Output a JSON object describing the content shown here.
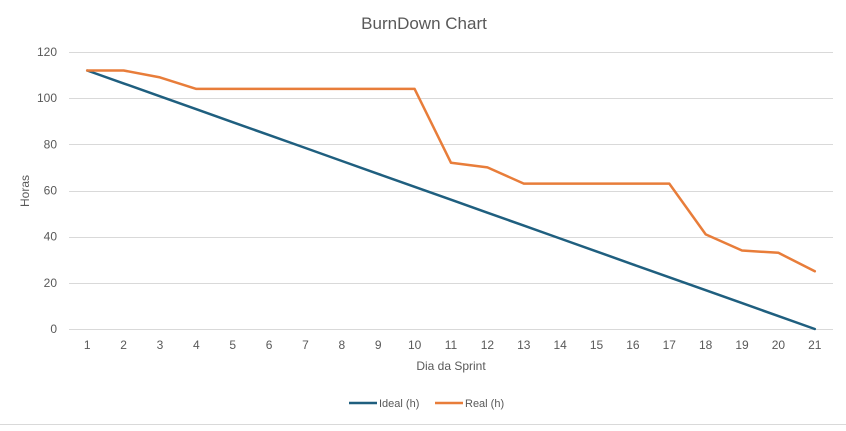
{
  "chart_data": {
    "type": "line",
    "title": "BurnDown Chart",
    "xlabel": "Dia da Sprint",
    "ylabel": "Horas",
    "x": [
      1,
      2,
      3,
      4,
      5,
      6,
      7,
      8,
      9,
      10,
      11,
      12,
      13,
      14,
      15,
      16,
      17,
      18,
      19,
      20,
      21
    ],
    "ylim": [
      0,
      120
    ],
    "yticks": [
      0,
      20,
      40,
      60,
      80,
      100,
      120
    ],
    "grid": true,
    "legend_position": "bottom",
    "series": [
      {
        "name": "Ideal (h)",
        "color": "#1f5f7f",
        "values": [
          112,
          106.4,
          100.8,
          95.2,
          89.6,
          84,
          78.4,
          72.8,
          67.2,
          61.6,
          56,
          50.4,
          44.8,
          39.2,
          33.6,
          28,
          22.4,
          16.8,
          11.2,
          5.6,
          0
        ]
      },
      {
        "name": "Real (h)",
        "color": "#e87d3a",
        "values": [
          112,
          112,
          109,
          104,
          104,
          104,
          104,
          104,
          104,
          104,
          72,
          70,
          63,
          63,
          63,
          63,
          63,
          41,
          34,
          33,
          25
        ]
      }
    ]
  }
}
